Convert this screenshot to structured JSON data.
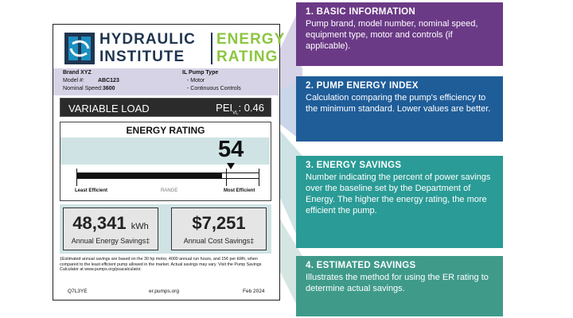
{
  "logo": {
    "line1_left": "HYDRAULIC",
    "line2_left": "INSTITUTE",
    "line1_right": "ENERGY",
    "line2_right": "RATING"
  },
  "info": {
    "brand": "Brand XYZ",
    "model_label": "Model #:",
    "model_value": "ABC123",
    "speed_label": "Nominal Speed:",
    "speed_value": "3600",
    "pump_type_label": "IL Pump Type",
    "pump_type_1": "- Motor",
    "pump_type_2": "- Continuous Controls"
  },
  "load": {
    "label": "VARIABLE LOAD",
    "pei_prefix": "PEI",
    "pei_sub": "VL",
    "pei_value": ": 0.46"
  },
  "rating": {
    "title": "ENERGY RATING",
    "value": "54",
    "fill_fraction": 0.8,
    "least_label": "Least Efficient",
    "range_label": "RANGE",
    "most_label": "Most Efficient"
  },
  "savings": {
    "energy_value": "48,341",
    "energy_unit": "kWh",
    "energy_label": "Annual Energy Savings‡",
    "cost_value": "$7,251",
    "cost_label": "Annual Cost Savings‡"
  },
  "footnote": "‡Estimated annual savings are based on the 30 hp motor, 4000 annual run hours, and 15¢ per kWh, when compared to the least efficient pump allowed in the market. Actual savings may vary. Visit the Pump Savings Calculator at www.pumps.org/psacalculator.",
  "footer": {
    "code": "Q7L3YE",
    "url": "er.pumps.org",
    "date": "Feb 2024"
  },
  "callouts": [
    {
      "title": "1.  BASIC INFORMATION",
      "body": "Pump brand, model number, nominal speed, equipment type, motor and controls (if applicable).",
      "color": "#6b3a86"
    },
    {
      "title": "2.  PUMP ENERGY INDEX",
      "body": "Calculation comparing the pump's efficiency to the minimum standard. Lower values are better.",
      "color": "#1f5d99"
    },
    {
      "title": "3.  ENERGY SAVINGS",
      "body": "Number indicating the percent of power savings over the baseline set by the Department of Energy. The higher the energy rating, the more efficient the pump.",
      "color": "#2a9b96"
    },
    {
      "title": "4.  ESTIMATED SAVINGS",
      "body": "Illustrates the method for using the ER rating to determine actual savings.",
      "color": "#3f9a8a"
    }
  ]
}
